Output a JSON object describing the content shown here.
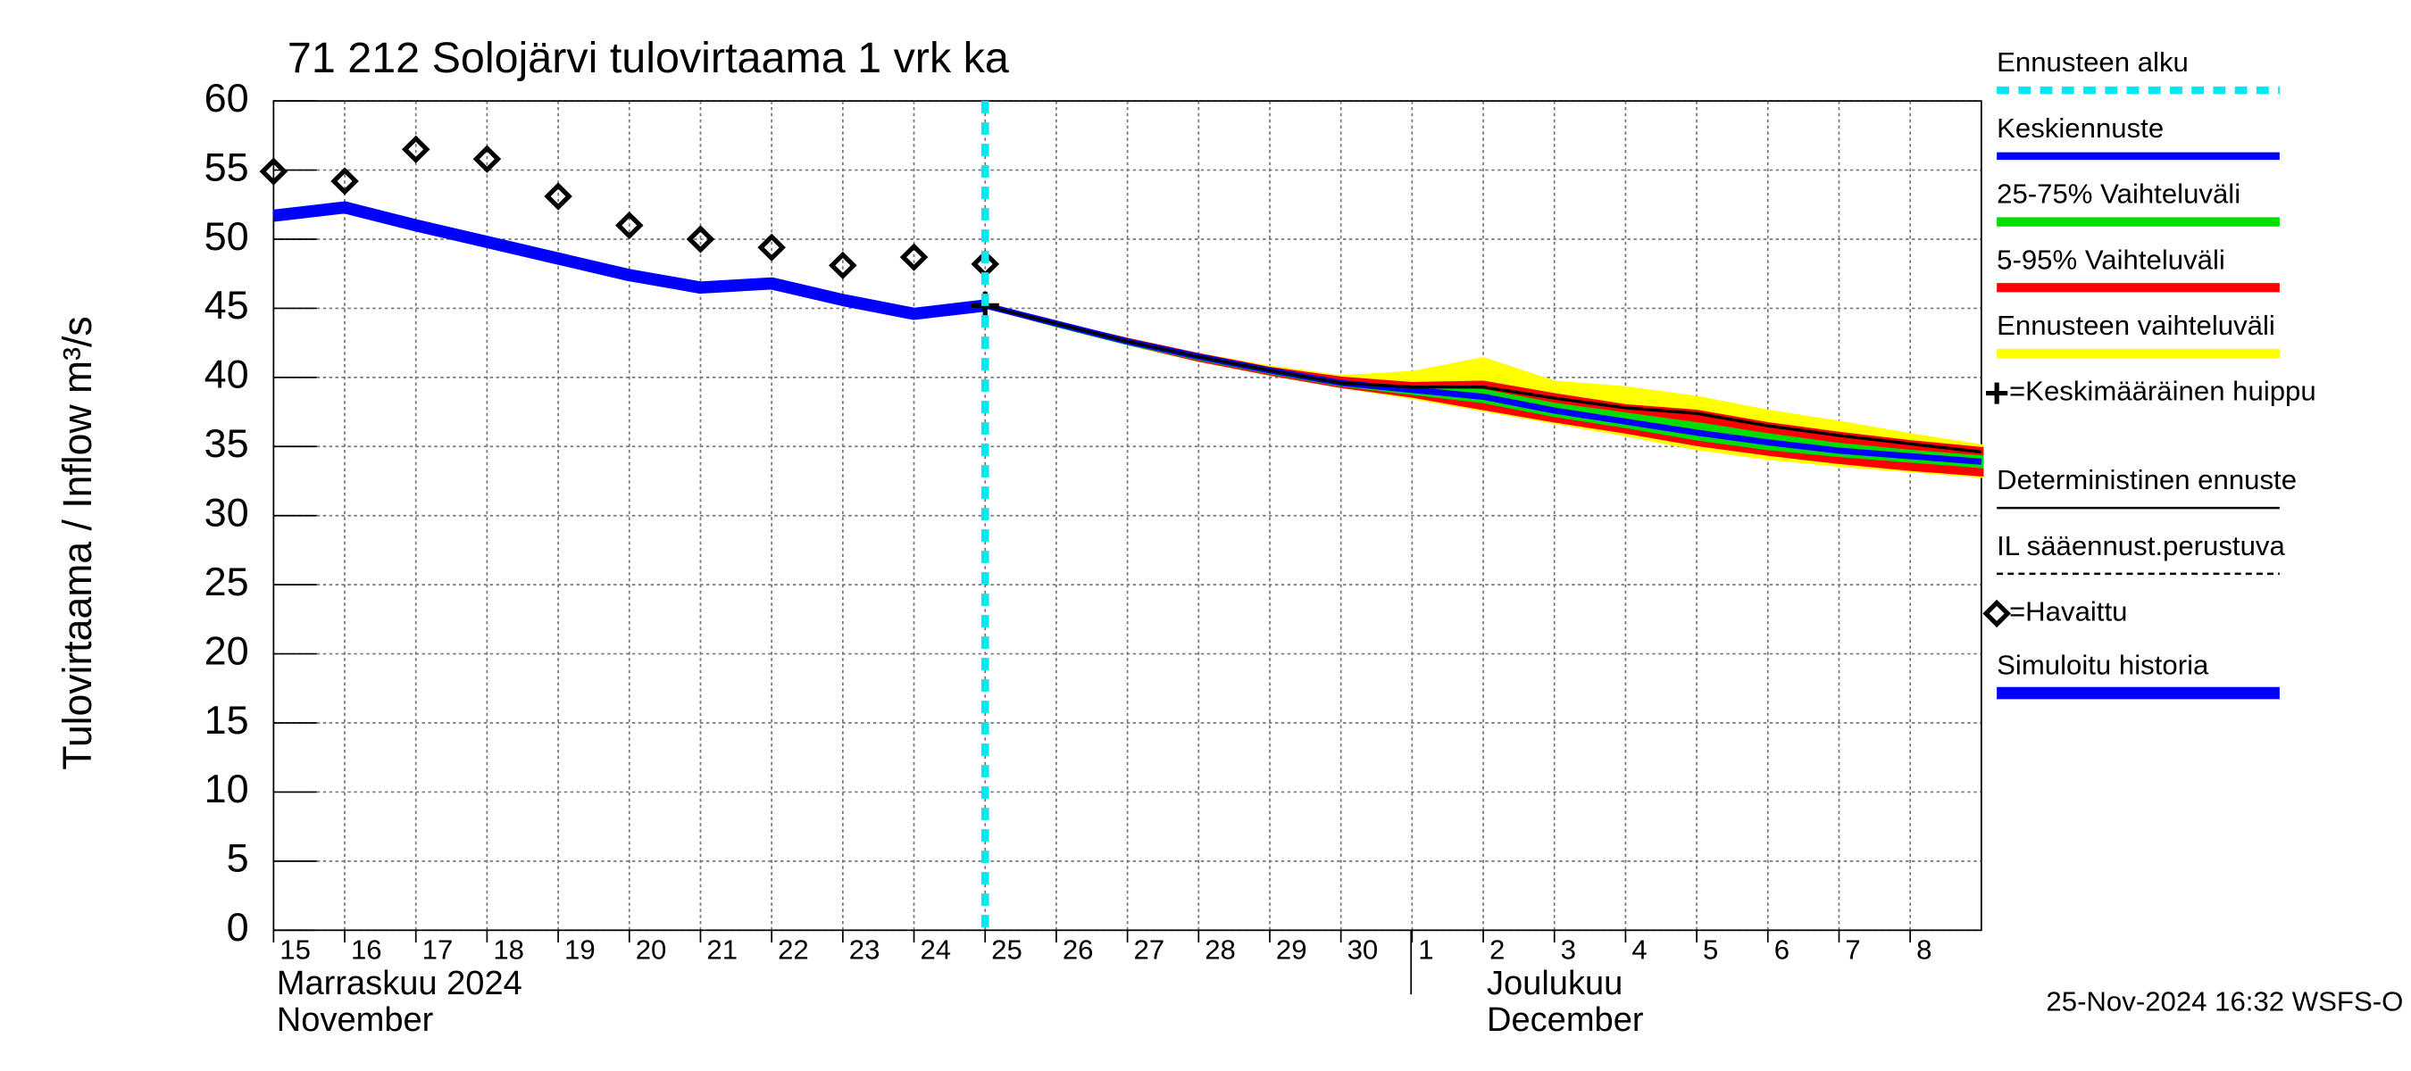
{
  "chart_data": {
    "type": "line",
    "title": "71 212 Solojärvi tulovirtaama 1 vrk ka",
    "y_label": "Tulovirtaama / Inflow    m³/s",
    "month_labels": [
      [
        "Marraskuu 2024",
        "November"
      ],
      [
        "Joulukuu",
        "December"
      ]
    ],
    "footer": "25-Nov-2024 16:32 WSFS-O",
    "xlim": [
      "2024-11-15",
      "2024-12-09"
    ],
    "xticks": [
      {
        "value": "2024-11-15",
        "label": "15"
      },
      {
        "value": "2024-11-16",
        "label": "16"
      },
      {
        "value": "2024-11-17",
        "label": "17"
      },
      {
        "value": "2024-11-18",
        "label": "18"
      },
      {
        "value": "2024-11-19",
        "label": "19"
      },
      {
        "value": "2024-11-20",
        "label": "20"
      },
      {
        "value": "2024-11-21",
        "label": "21"
      },
      {
        "value": "2024-11-22",
        "label": "22"
      },
      {
        "value": "2024-11-23",
        "label": "23"
      },
      {
        "value": "2024-11-24",
        "label": "24"
      },
      {
        "value": "2024-11-25",
        "label": "25"
      },
      {
        "value": "2024-11-26",
        "label": "26"
      },
      {
        "value": "2024-11-27",
        "label": "27"
      },
      {
        "value": "2024-11-28",
        "label": "28"
      },
      {
        "value": "2024-11-29",
        "label": "29"
      },
      {
        "value": "2024-11-30",
        "label": "30"
      },
      {
        "value": "2024-12-01",
        "label": "1"
      },
      {
        "value": "2024-12-02",
        "label": "2"
      },
      {
        "value": "2024-12-03",
        "label": "3"
      },
      {
        "value": "2024-12-04",
        "label": "4"
      },
      {
        "value": "2024-12-05",
        "label": "5"
      },
      {
        "value": "2024-12-06",
        "label": "6"
      },
      {
        "value": "2024-12-07",
        "label": "7"
      },
      {
        "value": "2024-12-08",
        "label": "8"
      }
    ],
    "ylim": [
      0,
      60
    ],
    "yticks": [
      0,
      5,
      10,
      15,
      20,
      25,
      30,
      35,
      40,
      45,
      50,
      55,
      60
    ],
    "grid": true,
    "series": [
      {
        "name": "Ennusteen alku",
        "color": "#00e8f0",
        "style": "vline",
        "x": [
          "2024-11-25"
        ]
      },
      {
        "name": "Keskiennuste",
        "color": "#0000ff",
        "style": "line",
        "x": [
          "2024-11-25",
          "2024-11-26",
          "2024-11-27",
          "2024-11-28",
          "2024-11-29",
          "2024-11-30",
          "2024-12-01",
          "2024-12-02",
          "2024-12-03",
          "2024-12-04",
          "2024-12-05",
          "2024-12-06",
          "2024-12-07",
          "2024-12-08",
          "2024-12-09"
        ],
        "values": [
          45.2,
          43.9,
          42.6,
          41.5,
          40.5,
          39.6,
          39.1,
          38.6,
          37.6,
          36.8,
          36.0,
          35.3,
          34.7,
          34.3,
          33.9
        ]
      },
      {
        "name": "25-75% Vaihteluväli",
        "color": "#00dd00",
        "style": "band",
        "x": [
          "2024-11-25",
          "2024-11-26",
          "2024-11-27",
          "2024-11-28",
          "2024-11-29",
          "2024-11-30",
          "2024-12-01",
          "2024-12-02",
          "2024-12-03",
          "2024-12-04",
          "2024-12-05",
          "2024-12-06",
          "2024-12-07",
          "2024-12-08",
          "2024-12-09"
        ],
        "low": [
          45.2,
          43.8,
          42.5,
          41.4,
          40.4,
          39.5,
          38.9,
          38.3,
          37.3,
          36.5,
          35.6,
          34.9,
          34.4,
          34.0,
          33.6
        ],
        "high": [
          45.2,
          43.9,
          42.6,
          41.5,
          40.5,
          39.6,
          39.2,
          39.0,
          38.0,
          37.3,
          36.6,
          35.8,
          35.1,
          34.6,
          34.2
        ]
      },
      {
        "name": "5-95% Vaihteluväli",
        "color": "#ff0000",
        "style": "band",
        "x": [
          "2024-11-25",
          "2024-11-26",
          "2024-11-27",
          "2024-11-28",
          "2024-11-29",
          "2024-11-30",
          "2024-12-01",
          "2024-12-02",
          "2024-12-03",
          "2024-12-04",
          "2024-12-05",
          "2024-12-06",
          "2024-12-07",
          "2024-12-08",
          "2024-12-09"
        ],
        "low": [
          45.2,
          43.8,
          42.5,
          41.3,
          40.3,
          39.4,
          38.7,
          37.8,
          36.9,
          36.1,
          35.2,
          34.5,
          33.9,
          33.4,
          33.0
        ],
        "high": [
          45.2,
          43.9,
          42.7,
          41.6,
          40.6,
          39.9,
          39.5,
          39.6,
          38.7,
          37.9,
          37.5,
          36.6,
          35.9,
          35.3,
          34.8
        ]
      },
      {
        "name": "Ennusteen vaihteluväli",
        "color": "#ffff00",
        "style": "band",
        "x": [
          "2024-11-25",
          "2024-11-26",
          "2024-11-27",
          "2024-11-28",
          "2024-11-29",
          "2024-11-30",
          "2024-12-01",
          "2024-12-02",
          "2024-12-03",
          "2024-12-04",
          "2024-12-05",
          "2024-12-06",
          "2024-12-07",
          "2024-12-08",
          "2024-12-09"
        ],
        "low": [
          45.2,
          43.8,
          42.5,
          41.3,
          40.3,
          39.4,
          38.6,
          37.7,
          36.8,
          35.9,
          34.9,
          34.2,
          33.7,
          33.3,
          32.9
        ],
        "high": [
          45.2,
          43.9,
          42.7,
          41.6,
          40.7,
          40.0,
          40.3,
          41.3,
          39.6,
          39.2,
          38.5,
          37.5,
          36.7,
          35.8,
          35.0
        ]
      },
      {
        "name": "=Keskimääräinen huippu",
        "color": "#000000",
        "style": "cross",
        "x": [
          "2024-11-25"
        ],
        "values": [
          45.2
        ]
      },
      {
        "name": "Deterministinen ennuste",
        "color": "#000000",
        "style": "line",
        "x": [
          "2024-11-25",
          "2024-11-26",
          "2024-11-27",
          "2024-11-28",
          "2024-11-29",
          "2024-11-30",
          "2024-12-01",
          "2024-12-02",
          "2024-12-03",
          "2024-12-04",
          "2024-12-05",
          "2024-12-06",
          "2024-12-07",
          "2024-12-08",
          "2024-12-09"
        ],
        "values": [
          45.2,
          43.9,
          42.6,
          41.5,
          40.5,
          39.6,
          39.3,
          39.3,
          38.5,
          37.8,
          37.4,
          36.5,
          35.8,
          35.2,
          34.6
        ]
      },
      {
        "name": "IL sääennust.perustuva",
        "color": "#000000",
        "style": "dashed"
      },
      {
        "name": "=Havaittu",
        "color": "#000000",
        "style": "diamond",
        "x": [
          "2024-11-15",
          "2024-11-16",
          "2024-11-17",
          "2024-11-18",
          "2024-11-19",
          "2024-11-20",
          "2024-11-21",
          "2024-11-22",
          "2024-11-23",
          "2024-11-24",
          "2024-11-25"
        ],
        "values": [
          54.9,
          54.2,
          56.5,
          55.8,
          53.1,
          51.0,
          50.0,
          49.4,
          48.1,
          48.7,
          48.2
        ]
      },
      {
        "name": "Simuloitu historia",
        "color": "#0000ff",
        "style": "history",
        "x": [
          "2024-11-15",
          "2024-11-16",
          "2024-11-17",
          "2024-11-18",
          "2024-11-19",
          "2024-11-20",
          "2024-11-21",
          "2024-11-22",
          "2024-11-23",
          "2024-11-24",
          "2024-11-25"
        ],
        "values": [
          51.7,
          52.3,
          51.0,
          49.8,
          48.6,
          47.4,
          46.5,
          46.8,
          45.6,
          44.6,
          45.2
        ]
      }
    ]
  }
}
